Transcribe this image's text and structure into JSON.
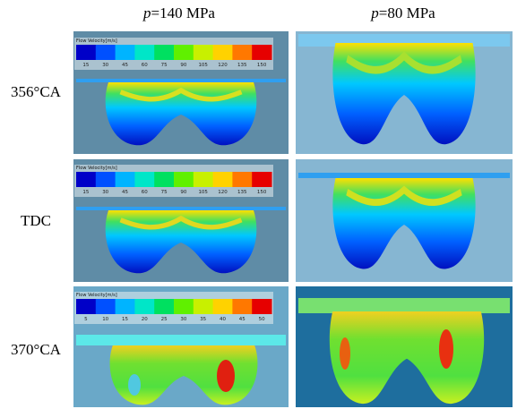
{
  "columns": [
    {
      "variable": "p",
      "value": "=140 MPa"
    },
    {
      "variable": "p",
      "value": "=80 MPa"
    }
  ],
  "rows": [
    {
      "label": "356°CA"
    },
    {
      "label": "TDC"
    },
    {
      "label": "370°CA"
    }
  ],
  "colorbars": [
    {
      "title": "Flow Velocity[m/s]",
      "ticks": [
        15,
        30,
        45,
        60,
        75,
        90,
        105,
        120,
        135,
        150
      ]
    },
    {
      "title": "Flow Velocity[m/s]",
      "ticks": [
        15,
        30,
        45,
        60,
        75,
        90,
        105,
        120,
        135,
        150
      ]
    },
    {
      "title": "Flow Velocity[m/s]",
      "ticks": [
        5,
        10,
        15,
        20,
        25,
        30,
        35,
        40,
        45,
        50
      ]
    }
  ]
}
